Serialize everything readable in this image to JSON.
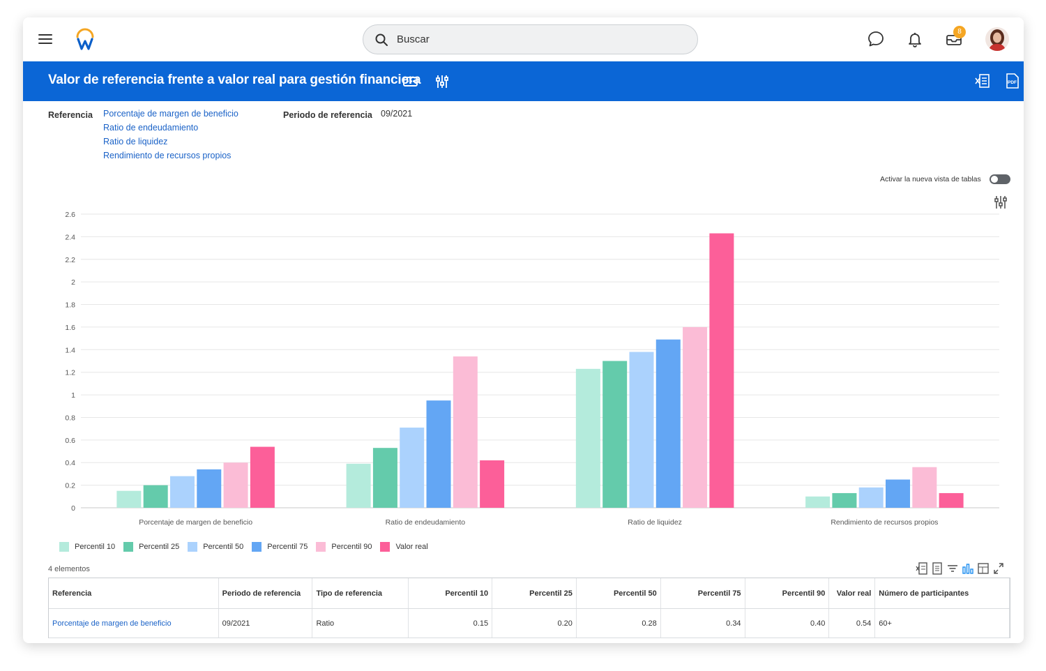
{
  "search": {
    "placeholder": "Buscar"
  },
  "notifications": {
    "inbox_badge": "8"
  },
  "header": {
    "title": "Valor de referencia frente a valor real para gestión financiera"
  },
  "filters": {
    "referencia_label": "Referencia",
    "referencias": [
      "Porcentaje de margen de beneficio",
      "Ratio de endeudamiento",
      "Ratio de liquidez",
      "Rendimiento de recursos propios"
    ],
    "periodo_label": "Periodo de referencia",
    "periodo_value": "09/2021"
  },
  "table_view_toggle": {
    "label": "Activar la nueva vista de tablas",
    "on": false
  },
  "colors": {
    "brand_blue": "#0b66d6",
    "link": "#1a62c7",
    "p10": "#b4ebdc",
    "p25": "#64cbab",
    "p50": "#abd2fd",
    "p75": "#63a6f4",
    "p90": "#fbbcd6",
    "real": "#fc5f99"
  },
  "chart_data": {
    "type": "bar",
    "categories": [
      "Porcentaje de margen de beneficio",
      "Ratio de endeudamiento",
      "Ratio de liquidez",
      "Rendimiento de recursos propios"
    ],
    "series": [
      {
        "name": "Percentil 10",
        "color": "#b4ebdc",
        "values": [
          0.15,
          0.39,
          1.23,
          0.1
        ]
      },
      {
        "name": "Percentil 25",
        "color": "#64cbab",
        "values": [
          0.2,
          0.53,
          1.3,
          0.13
        ]
      },
      {
        "name": "Percentil 50",
        "color": "#abd2fd",
        "values": [
          0.28,
          0.71,
          1.38,
          0.18
        ]
      },
      {
        "name": "Percentil 75",
        "color": "#63a6f4",
        "values": [
          0.34,
          0.95,
          1.49,
          0.25
        ]
      },
      {
        "name": "Percentil 90",
        "color": "#fbbcd6",
        "values": [
          0.4,
          1.34,
          1.6,
          0.36
        ]
      },
      {
        "name": "Valor real",
        "color": "#fc5f99",
        "values": [
          0.54,
          0.42,
          2.43,
          0.13
        ]
      }
    ],
    "yticks": [
      "0",
      "0.2",
      "0.4",
      "0.6",
      "0.8",
      "1",
      "1.2",
      "1.4",
      "1.6",
      "1.8",
      "2",
      "2.2",
      "2.4",
      "2.6"
    ],
    "ylim": [
      0,
      2.6
    ],
    "grid": true,
    "legend_position": "bottom-left"
  },
  "table": {
    "count": "4 elementos",
    "columns": [
      "Referencia",
      "Periodo de referencia",
      "Tipo de referencia",
      "Percentil 10",
      "Percentil 25",
      "Percentil 50",
      "Percentil 75",
      "Percentil 90",
      "Valor real",
      "Número de participantes"
    ],
    "rows": [
      [
        "Porcentaje de margen de beneficio",
        "09/2021",
        "Ratio",
        "0.15",
        "0.20",
        "0.28",
        "0.34",
        "0.40",
        "0.54",
        "60+"
      ]
    ]
  }
}
